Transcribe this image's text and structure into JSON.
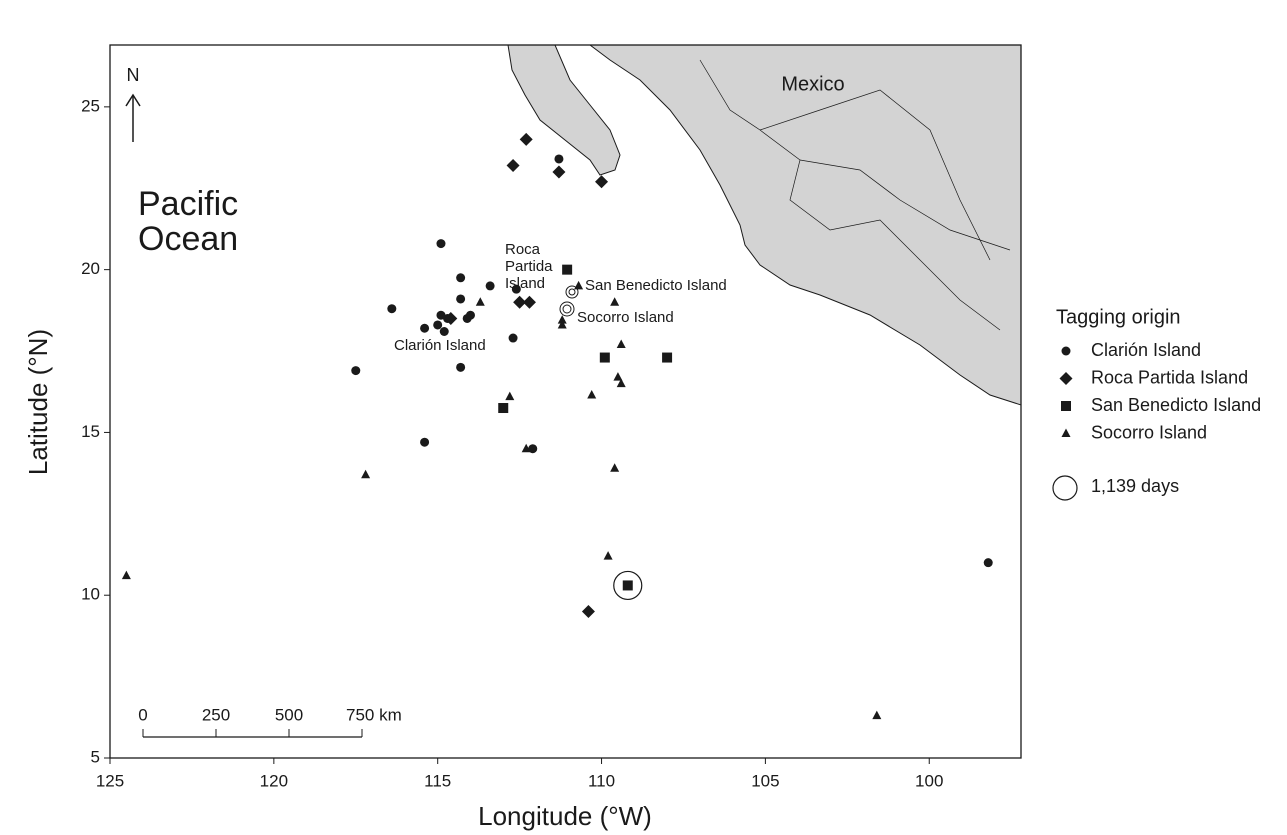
{
  "chart_data": {
    "type": "scatter",
    "x_label": "Longitude (°W)",
    "y_label": "Latitude (°N)",
    "xlim": [
      125,
      97.2
    ],
    "ylim": [
      5,
      26.9
    ],
    "xticks": [
      125,
      120,
      115,
      110,
      105,
      100
    ],
    "yticks": [
      5,
      10,
      15,
      20,
      25
    ],
    "legend_title": "Tagging origin",
    "legend_position": "right",
    "series": [
      {
        "name": "Clarión Island",
        "marker": "circle",
        "color": "#1a1a1a",
        "x": [
          114.9,
          114.3,
          113.4,
          114.3,
          116.4,
          111.3,
          114.9,
          114.7,
          115.0,
          114.8,
          115.4,
          114.1,
          114.0,
          112.7,
          114.3,
          117.5,
          115.4,
          112.1,
          98.2,
          112.6
        ],
        "y": [
          20.8,
          19.75,
          19.5,
          19.1,
          18.8,
          23.4,
          18.6,
          18.5,
          18.3,
          18.1,
          18.2,
          18.5,
          18.6,
          17.9,
          17.0,
          16.9,
          14.7,
          14.5,
          11.0,
          19.4
        ]
      },
      {
        "name": "Roca Partida Island",
        "marker": "diamond",
        "color": "#1a1a1a",
        "x": [
          112.3,
          112.7,
          111.3,
          110.0,
          112.5,
          112.2,
          114.6,
          110.4
        ],
        "y": [
          24.0,
          23.2,
          23.0,
          22.7,
          19.0,
          19.0,
          18.5,
          9.5
        ]
      },
      {
        "name": "San Benedicto Island",
        "marker": "square",
        "color": "#1a1a1a",
        "x": [
          111.05,
          109.9,
          108.0,
          113.0,
          109.2
        ],
        "y": [
          20.0,
          17.3,
          17.3,
          15.75,
          10.3
        ]
      },
      {
        "name": "Socorro Island",
        "marker": "triangle",
        "color": "#1a1a1a",
        "x": [
          124.5,
          117.2,
          113.7,
          112.8,
          112.3,
          110.7,
          109.6,
          111.2,
          111.2,
          109.4,
          109.5,
          109.4,
          110.3,
          109.6,
          109.8,
          101.6
        ],
        "y": [
          10.6,
          13.7,
          19.0,
          16.1,
          14.5,
          19.5,
          19.0,
          18.45,
          18.3,
          17.7,
          16.7,
          16.5,
          16.15,
          13.9,
          11.2,
          6.3
        ]
      }
    ],
    "size_legend": {
      "value": 1139,
      "label": "1,139 days",
      "x": 109.2,
      "y": 10.3
    },
    "annotations": {
      "country": "Mexico",
      "ocean": [
        "Pacific",
        "Ocean"
      ],
      "north": "N",
      "roca": [
        "Roca",
        "Partida",
        "Island"
      ],
      "san_benedicto": "San Benedicto Island",
      "socorro": "Socorro Island",
      "clarion": "Clarión Island"
    },
    "scale_bar": {
      "ticks": [
        0,
        250,
        500,
        {
          "value": 750,
          "label": "750 km"
        }
      ]
    }
  }
}
